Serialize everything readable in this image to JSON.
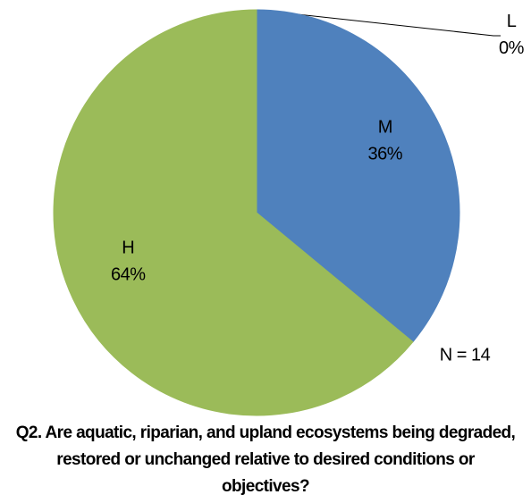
{
  "chart_data": {
    "type": "pie",
    "title": "Q2.  Are aquatic, riparian, and upland ecosystems being degraded, restored or unchanged relative to desired conditions or objectives?",
    "categories": [
      "L",
      "M",
      "H"
    ],
    "values": [
      0,
      36,
      64
    ],
    "value_labels": [
      "0%",
      "36%",
      "64%"
    ],
    "colors": [
      "#c0504d",
      "#4f81bd",
      "#9bbb59"
    ],
    "annotation": "N = 14"
  }
}
